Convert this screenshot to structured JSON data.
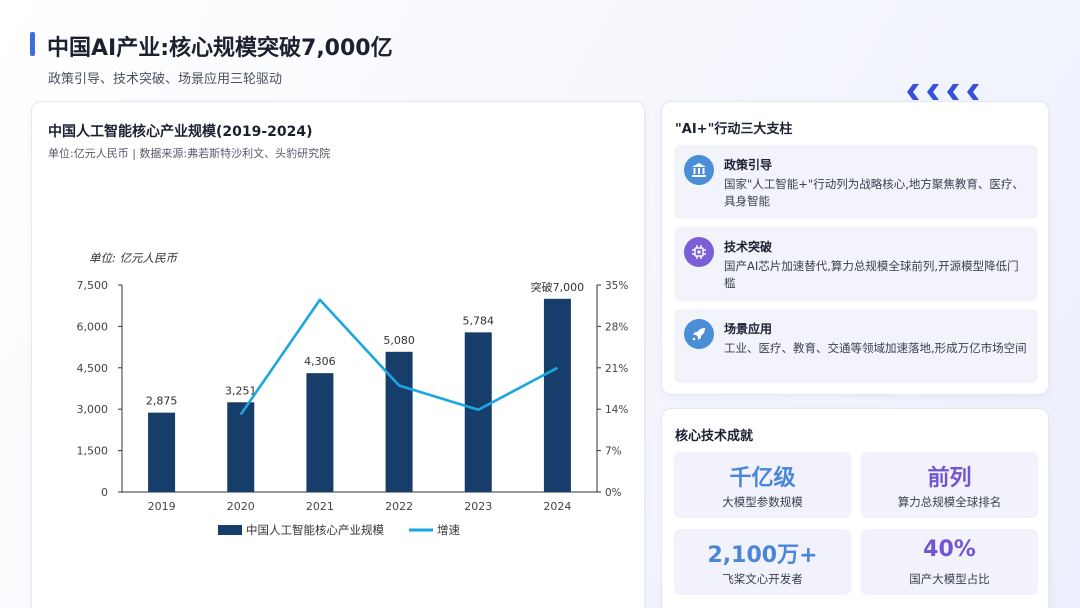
{
  "header": {
    "title": "中国AI产业:核心规模突破7,000亿",
    "subtitle": "政策引导、技术突破、场景应用三轮驱动"
  },
  "chart_card": {
    "title": "中国人工智能核心产业规模(2019-2024)",
    "source": "单位:亿元人民币 | 数据来源:弗若斯特沙利文、头豹研究院"
  },
  "chart_data": {
    "type": "bar",
    "unit_label": "单位: 亿元人民币",
    "categories": [
      "2019",
      "2020",
      "2021",
      "2022",
      "2023",
      "2024"
    ],
    "series": [
      {
        "name": "中国人工智能核心产业规模",
        "type": "bar",
        "axis": "left",
        "values": [
          2875,
          3251,
          4306,
          5080,
          5784,
          7000
        ],
        "color": "#173d6b"
      },
      {
        "name": "增速",
        "type": "line",
        "axis": "right",
        "values": [
          null,
          13.1,
          32.5,
          18.0,
          13.9,
          21.0
        ],
        "color": "#1aa7e0"
      }
    ],
    "data_labels": [
      "2,875",
      "3,251",
      "4,306",
      "5,080",
      "5,784",
      "突破7,000"
    ],
    "left_axis": {
      "ylim": [
        0,
        7500
      ],
      "ticks": [
        "0",
        "1,500",
        "3,000",
        "4,500",
        "6,000",
        "7,500"
      ]
    },
    "right_axis": {
      "ylim": [
        0,
        35
      ],
      "ticks": [
        "0%",
        "7%",
        "14%",
        "21%",
        "28%",
        "35%"
      ]
    },
    "legend_position": "bottom",
    "grid": false
  },
  "pillars": {
    "heading": "\"AI+\"行动三大支柱",
    "items": [
      {
        "title": "政策引导",
        "desc": "国家\"人工智能+\"行动列为战略核心,地方聚焦教育、医疗、具身智能",
        "icon": "bank-icon",
        "color": "#4a8fd6"
      },
      {
        "title": "技术突破",
        "desc": "国产AI芯片加速替代,算力总规模全球前列,开源模型降低门槛",
        "icon": "chip-icon",
        "color": "#7b5fd6"
      },
      {
        "title": "场景应用",
        "desc": "工业、医疗、教育、交通等领域加速落地,形成万亿市场空间",
        "icon": "rocket-icon",
        "color": "#4a8fd6"
      }
    ]
  },
  "tech": {
    "heading": "核心技术成就",
    "stats": [
      {
        "value": "千亿级",
        "label": "大模型参数规模",
        "color": "#4a86d8"
      },
      {
        "value": "前列",
        "label": "算力总规模全球排名",
        "color": "#7355d0"
      },
      {
        "value": "2,100万+",
        "label": "飞桨文心开发者",
        "color": "#4a86d8"
      },
      {
        "value": "40%",
        "label": "国产大模型占比",
        "color": "#7355d0"
      }
    ]
  }
}
